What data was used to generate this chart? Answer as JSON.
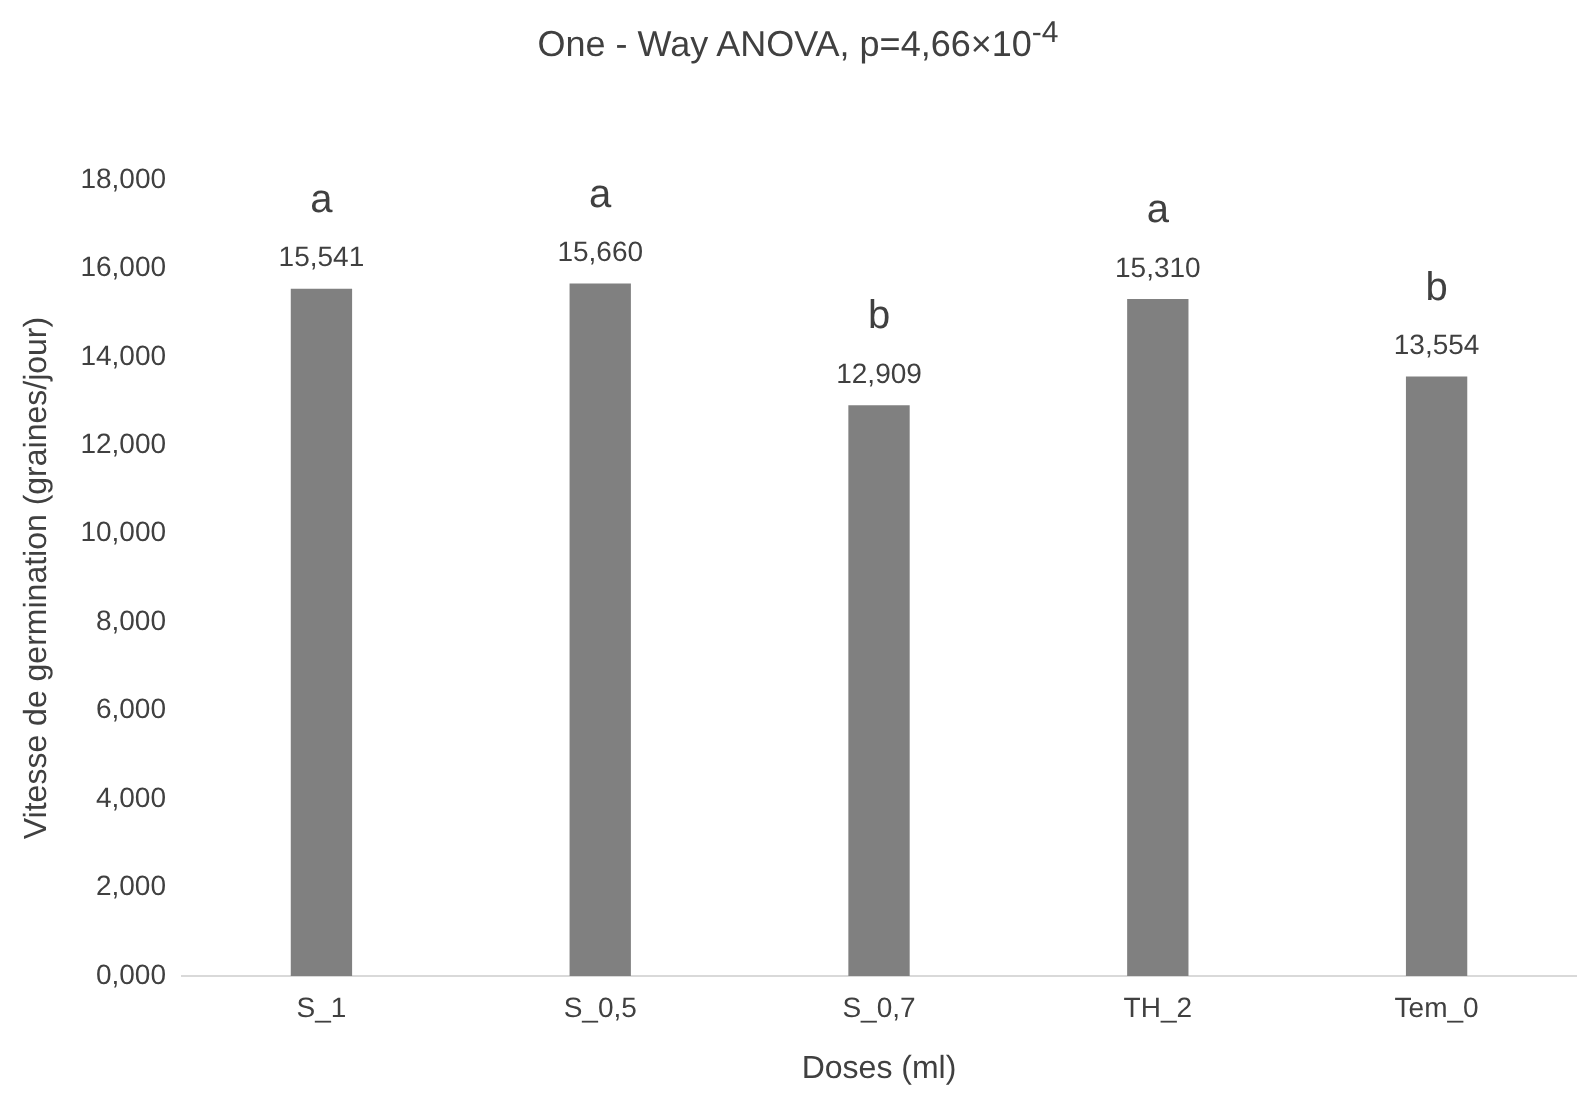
{
  "chart_data": {
    "type": "bar",
    "title": "One - Way  ANOVA, p=4,66×10$^{-4}$",
    "xlabel": "Doses (ml)",
    "ylabel": "Vitesse de germination (graines/jour)",
    "categories": [
      "S_1",
      "S_0,5",
      "S_0,7",
      "TH_2",
      "Tem_0"
    ],
    "values": [
      15.541,
      15.66,
      12.909,
      15.31,
      13.554
    ],
    "value_labels": [
      "15,541",
      "15,660",
      "12,909",
      "15,310",
      "13,554"
    ],
    "color": "#808080",
    "ylim": [
      0,
      18
    ],
    "yticks": [
      {
        "value": 0,
        "label": "0,000"
      },
      {
        "value": 2,
        "label": "2,000"
      },
      {
        "value": 4,
        "label": "4,000"
      },
      {
        "value": 6,
        "label": "6,000"
      },
      {
        "value": 8,
        "label": "8,000"
      },
      {
        "value": 10,
        "label": "10,000"
      },
      {
        "value": 12,
        "label": "12,000"
      },
      {
        "value": 14,
        "label": "14,000"
      },
      {
        "value": 16,
        "label": "16,000"
      },
      {
        "value": 18,
        "label": "18,000"
      }
    ],
    "annotations": [
      {
        "text": "a",
        "x": "S_1",
        "y": 15.541
      },
      {
        "text": "a",
        "x": "S_0,5",
        "y": 15.66
      },
      {
        "text": "b",
        "x": "S_0,7",
        "y": 12.909
      },
      {
        "text": "a",
        "x": "TH_2",
        "y": 15.31
      },
      {
        "text": "b",
        "x": "Tem_0",
        "y": 13.554
      }
    ],
    "grid": false,
    "legend": false
  }
}
